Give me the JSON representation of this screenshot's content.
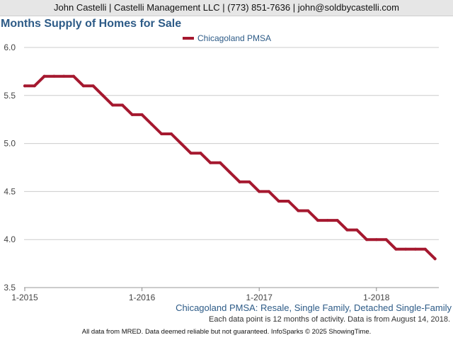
{
  "header": {
    "contact": "John Castelli | Castelli Management LLC | (773) 851-7636 | john@soldbycastelli.com"
  },
  "colors": {
    "series": "#a5182f",
    "title": "#2d5b87",
    "grid": "#cccccc"
  },
  "chart_data": {
    "type": "line",
    "title": "Months Supply of Homes for Sale",
    "legend_position": "top-center",
    "grid": true,
    "ylim": [
      3.5,
      6.0
    ],
    "y_ticks": [
      "3.5",
      "4.0",
      "4.5",
      "5.0",
      "5.5",
      "6.0"
    ],
    "x_ticks": [
      "1-2015",
      "1-2016",
      "1-2017",
      "1-2018"
    ],
    "x_tick_month_index": [
      0,
      12,
      24,
      36
    ],
    "series": [
      {
        "name": "Chicagoland PMSA",
        "start": "1-2015",
        "values": [
          5.6,
          5.6,
          5.7,
          5.7,
          5.7,
          5.7,
          5.6,
          5.6,
          5.5,
          5.4,
          5.4,
          5.3,
          5.3,
          5.2,
          5.1,
          5.1,
          5.0,
          4.9,
          4.9,
          4.8,
          4.8,
          4.7,
          4.6,
          4.6,
          4.5,
          4.5,
          4.4,
          4.4,
          4.3,
          4.3,
          4.2,
          4.2,
          4.2,
          4.1,
          4.1,
          4.0,
          4.0,
          4.0,
          3.9,
          3.9,
          3.9,
          3.9,
          3.8
        ]
      }
    ]
  },
  "footer": {
    "series_description": "Chicagoland PMSA: Resale, Single Family, Detached Single-Family",
    "note": "Each data point is 12 months of activity. Data is from August 14, 2018.",
    "disclaimer": "All data from MRED. Data deemed reliable but not guaranteed. InfoSparks © 2025 ShowingTime."
  }
}
